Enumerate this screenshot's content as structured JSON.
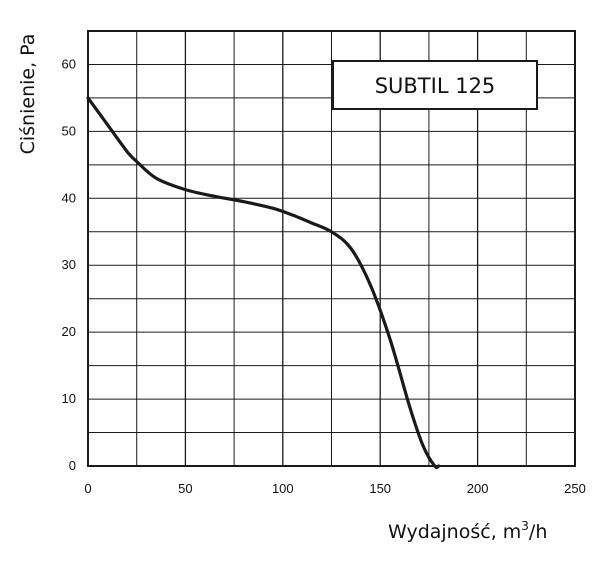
{
  "chart_data": {
    "type": "line",
    "title": "",
    "xlabel": "Wydajność, m",
    "xlabel_sup": "3",
    "xlabel_tail": "/h",
    "ylabel": "Ciśnienie, Pa",
    "xlim": [
      0,
      250
    ],
    "ylim": [
      0,
      65
    ],
    "x_ticks": [
      0,
      50,
      100,
      150,
      200,
      250
    ],
    "y_ticks": [
      0,
      10,
      20,
      30,
      40,
      50,
      60
    ],
    "x_tick_labels": [
      "0",
      "50",
      "100",
      "150",
      "200",
      "250"
    ],
    "y_tick_labels": [
      "0",
      "10",
      "20",
      "30",
      "40",
      "50",
      "60"
    ],
    "grid": true,
    "legend_position": "top-right",
    "series": [
      {
        "name": "SUBTIL 125",
        "color": "#1a1a1a",
        "x": [
          0,
          10,
          20,
          25,
          35,
          50,
          65,
          80,
          95,
          105,
          115,
          125,
          135,
          145,
          155,
          165,
          172,
          178,
          180
        ],
        "y": [
          55,
          51,
          47,
          45.5,
          43,
          41.3,
          40.3,
          39.5,
          38.5,
          37.5,
          36.3,
          35,
          32.5,
          27,
          19,
          9,
          3,
          0,
          0
        ]
      }
    ]
  }
}
